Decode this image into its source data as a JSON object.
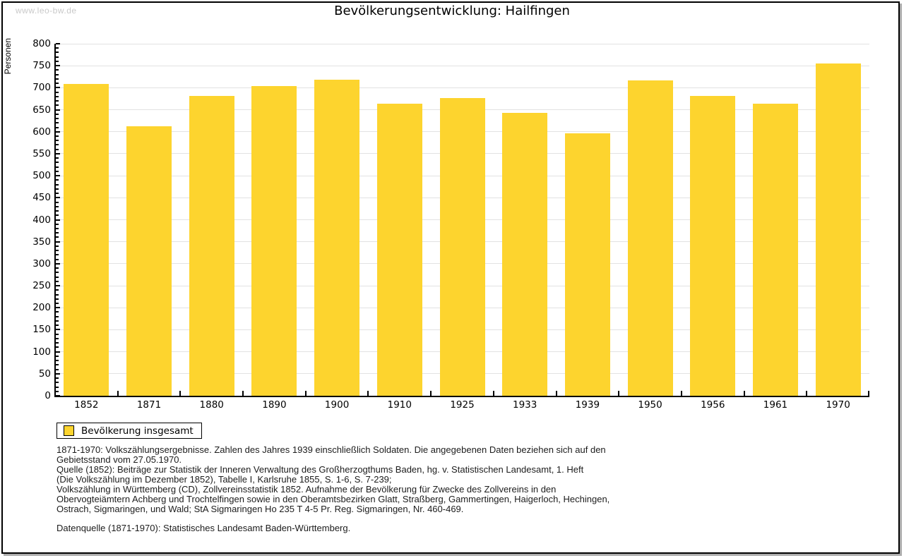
{
  "page": {
    "watermark": "www.leo-bw.de",
    "title": "Bevölkerungsentwicklung: Hailfingen"
  },
  "chart_data": {
    "type": "bar",
    "title": "Bevölkerungsentwicklung: Hailfingen",
    "xlabel": "",
    "ylabel": "Personen",
    "categories": [
      "1852",
      "1871",
      "1880",
      "1890",
      "1900",
      "1910",
      "1925",
      "1933",
      "1939",
      "1950",
      "1956",
      "1961",
      "1970"
    ],
    "values": [
      708,
      613,
      682,
      704,
      719,
      664,
      676,
      643,
      597,
      716,
      681,
      663,
      755
    ],
    "ylim": [
      0,
      800
    ],
    "ytick_step": 50,
    "yminor_step": 10,
    "grid": true,
    "legend_position": "bottom-left",
    "bar_color": "#FDD42E",
    "legend": {
      "label": "Bevölkerung insgesamt"
    }
  },
  "footnotes": {
    "lines": [
      "1871-1970: Volkszählungsergebnisse. Zahlen des Jahres 1939 einschließlich Soldaten. Die angegebenen Daten beziehen sich auf den",
      "Gebietsstand vom 27.05.1970.",
      "Quelle (1852): Beiträge zur Statistik der Inneren Verwaltung des Großherzogthums Baden, hg. v. Statistischen Landesamt, 1. Heft",
      "(Die Volkszählung im Dezember 1852), Tabelle I, Karlsruhe 1855, S. 1-6, S. 7-239;",
      "Volkszählung in Württemberg (CD), Zollvereinsstatistik 1852. Aufnahme der Bevölkerung für Zwecke des Zollvereins in den",
      "Obervogteiämtern Achberg und Trochtelfingen sowie in den Oberamtsbezirken Glatt, Straßberg, Gammertingen, Haigerloch, Hechingen,",
      "Ostrach, Sigmaringen, und Wald; StA Sigmaringen Ho 235 T 4-5 Pr. Reg. Sigmaringen, Nr. 460-469."
    ],
    "datasource": "Datenquelle (1871-1970): Statistisches Landesamt Baden-Württemberg."
  }
}
